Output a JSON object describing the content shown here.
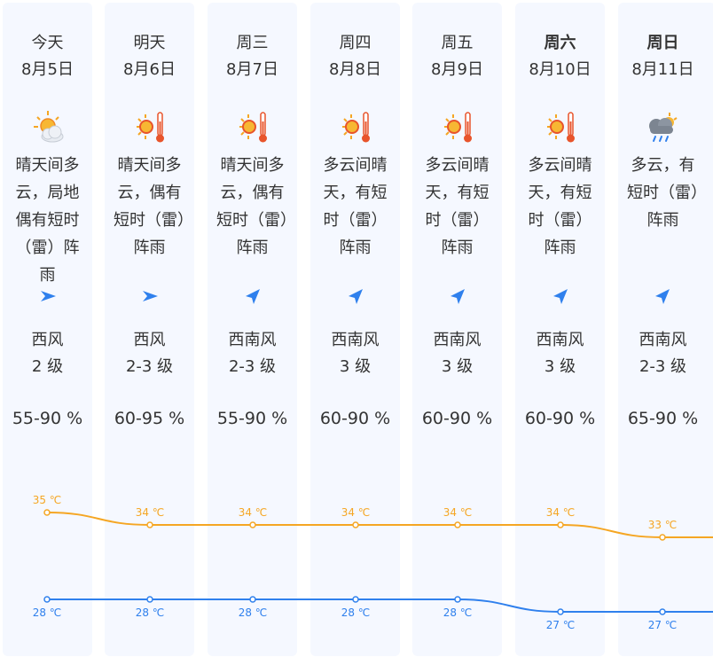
{
  "days": [
    {
      "day": "今天",
      "date": "8月5日",
      "bold": false,
      "icon": "sun-cloud-icon",
      "desc": "晴天间多云，局地偶有短时（雷）阵雨",
      "arrow": "wind-arrow-east-icon",
      "wind_dir": "西风",
      "wind_level": "2 级",
      "humidity": "55-90 %",
      "high": "35 ℃",
      "low": "28 ℃"
    },
    {
      "day": "明天",
      "date": "8月6日",
      "bold": false,
      "icon": "sun-hot-icon",
      "desc": "晴天间多云，偶有短时（雷）阵雨",
      "arrow": "wind-arrow-east-icon",
      "wind_dir": "西风",
      "wind_level": "2-3 级",
      "humidity": "60-95 %",
      "high": "34 ℃",
      "low": "28 ℃"
    },
    {
      "day": "周三",
      "date": "8月7日",
      "bold": false,
      "icon": "sun-hot-icon",
      "desc": "晴天间多云，偶有短时（雷）阵雨",
      "arrow": "wind-arrow-northeast-icon",
      "wind_dir": "西南风",
      "wind_level": "2-3 级",
      "humidity": "55-90 %",
      "high": "34 ℃",
      "low": "28 ℃"
    },
    {
      "day": "周四",
      "date": "8月8日",
      "bold": false,
      "icon": "sun-hot-icon",
      "desc": "多云间晴天，有短时（雷）阵雨",
      "arrow": "wind-arrow-northeast-icon",
      "wind_dir": "西南风",
      "wind_level": "3 级",
      "humidity": "60-90 %",
      "high": "34 ℃",
      "low": "28 ℃"
    },
    {
      "day": "周五",
      "date": "8月9日",
      "bold": false,
      "icon": "sun-hot-icon",
      "desc": "多云间晴天，有短时（雷）阵雨",
      "arrow": "wind-arrow-northeast-icon",
      "wind_dir": "西南风",
      "wind_level": "3 级",
      "humidity": "60-90 %",
      "high": "34 ℃",
      "low": "28 ℃"
    },
    {
      "day": "周六",
      "date": "8月10日",
      "bold": true,
      "icon": "sun-hot-icon",
      "desc": "多云间晴天，有短时（雷）阵雨",
      "arrow": "wind-arrow-northeast-icon",
      "wind_dir": "西南风",
      "wind_level": "3 级",
      "humidity": "60-90 %",
      "high": "34 ℃",
      "low": "27 ℃"
    },
    {
      "day": "周日",
      "date": "8月11日",
      "bold": true,
      "icon": "cloud-rain-icon",
      "desc": "多云，有短时（雷）阵雨",
      "arrow": "wind-arrow-northeast-icon",
      "wind_dir": "西南风",
      "wind_level": "2-3 级",
      "humidity": "65-90 %",
      "high": "33 ℃",
      "low": "27 ℃"
    }
  ],
  "colors": {
    "high_line": "#f5a623",
    "low_line": "#2f80ed",
    "arrow": "#2f80ed",
    "column_bg": "#f5f8ff"
  },
  "chart_data": {
    "type": "line",
    "categories": [
      "8月5日",
      "8月6日",
      "8月7日",
      "8月8日",
      "8月9日",
      "8月10日",
      "8月11日"
    ],
    "series": [
      {
        "name": "",
        "values": [
          35,
          34,
          34,
          34,
          34,
          34,
          33
        ]
      },
      {
        "name": "",
        "values": [
          28,
          28,
          28,
          28,
          28,
          27,
          27
        ]
      }
    ],
    "title": "",
    "xlabel": "",
    "ylabel": ""
  }
}
